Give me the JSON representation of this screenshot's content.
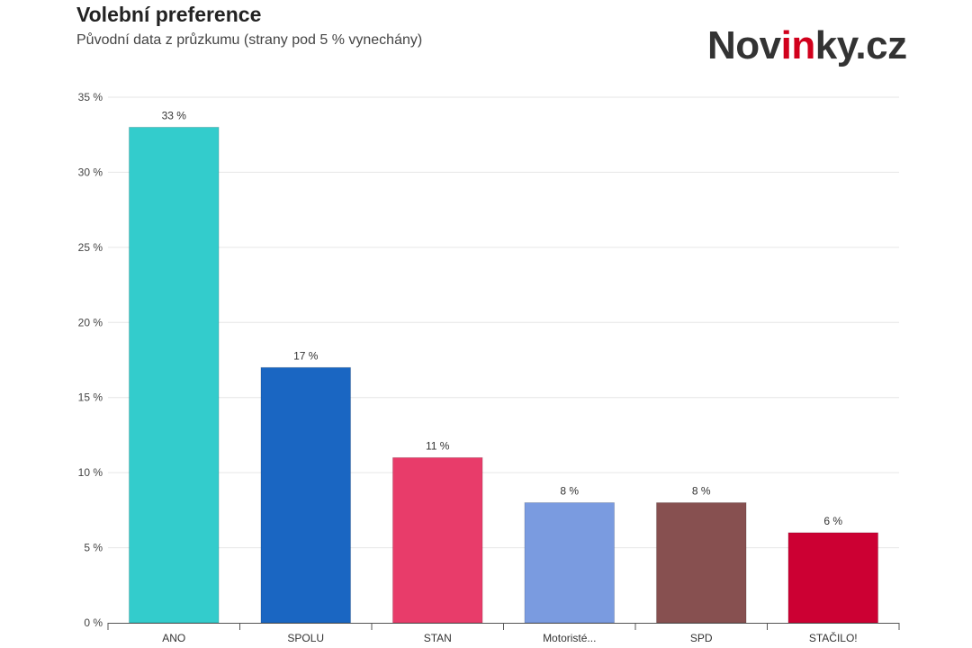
{
  "header": {
    "title": "Volební preference",
    "subtitle": "Původní data z průzkumu (strany pod 5 % vynechány)"
  },
  "logo": {
    "text_pre": "Nov",
    "text_accent": "in",
    "text_post": "ky.cz",
    "accent_color": "#d1001c"
  },
  "chart_data": {
    "type": "bar",
    "title": "Volební preference",
    "subtitle": "Původní data z průzkumu (strany pod 5 % vynechány)",
    "categories": [
      "ANO",
      "SPOLU",
      "STAN",
      "Motoristé...",
      "SPD",
      "STAČILO!"
    ],
    "values": [
      33,
      17,
      11,
      8,
      8,
      6
    ],
    "data_labels": [
      "33 %",
      "17 %",
      "11 %",
      "8 %",
      "8 %",
      "6 %"
    ],
    "colors": [
      "#33cccc",
      "#1a66c2",
      "#e83c6a",
      "#7a9be0",
      "#875050",
      "#cc0033"
    ],
    "ylim": [
      0,
      35
    ],
    "yticks": [
      0,
      5,
      10,
      15,
      20,
      25,
      30,
      35
    ],
    "ytick_labels": [
      "0 %",
      "5 %",
      "10 %",
      "15 %",
      "20 %",
      "25 %",
      "30 %",
      "35 %"
    ],
    "xlabel": "",
    "ylabel": "",
    "grid": true,
    "legend": false
  }
}
